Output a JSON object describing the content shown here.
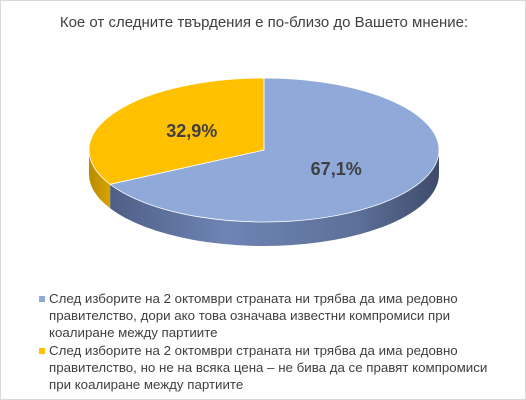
{
  "chart_data": {
    "type": "pie",
    "title": "Кое от следните твърдения е по-близо до Вашето мнение:",
    "series": [
      {
        "name": "След изборите на 2 октомври страната ни трябва да има редовно правителство, дори ако това означава известни компромиси при коалиране между партиите",
        "value": 67.1,
        "label": "67,1%",
        "color": "#8fa9d9"
      },
      {
        "name": "След изборите на 2 октомври страната ни трябва да има редовно правителство, но не на всяка цена – не бива да се правят компромиси при коалиране между партиите",
        "value": 32.9,
        "label": "32,9%",
        "color": "#ffc000"
      }
    ],
    "legend_position": "bottom"
  }
}
